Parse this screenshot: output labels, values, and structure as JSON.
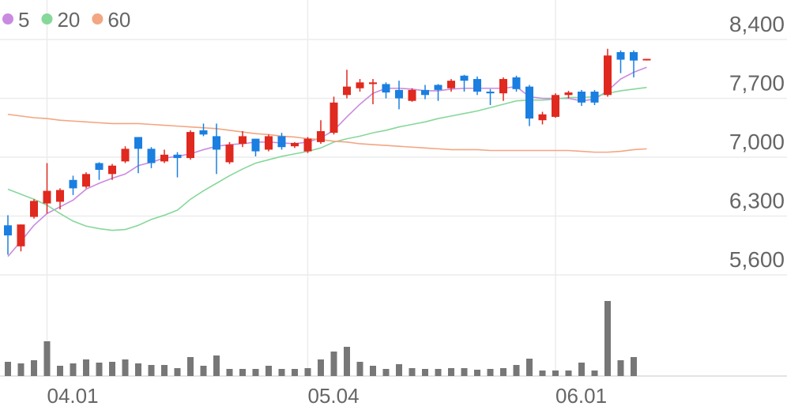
{
  "chart_data": {
    "type": "candlestick",
    "categories": [
      null,
      null,
      null,
      "04.01",
      null,
      null,
      null,
      null,
      null,
      null,
      null,
      null,
      null,
      null,
      null,
      null,
      null,
      null,
      null,
      null,
      null,
      null,
      null,
      "05.04",
      null,
      null,
      null,
      null,
      null,
      null,
      null,
      null,
      null,
      null,
      null,
      null,
      null,
      null,
      null,
      null,
      null,
      null,
      "06.01",
      null,
      null,
      null,
      null,
      null,
      null,
      null
    ],
    "open": [
      6190,
      5940,
      6290,
      6450,
      6470,
      6730,
      6650,
      6930,
      6800,
      6950,
      7240,
      7100,
      6950,
      7030,
      6990,
      7320,
      7250,
      6940,
      7160,
      7220,
      7090,
      7250,
      7130,
      7070,
      7180,
      7290,
      7740,
      7820,
      7870,
      7870,
      7800,
      7670,
      7800,
      7860,
      7820,
      7970,
      7930,
      7780,
      7760,
      7950,
      7840,
      7440,
      7480,
      7740,
      7780,
      7780,
      7740,
      8250,
      8250,
      8160
    ],
    "high": [
      6310,
      6200,
      6500,
      6930,
      6630,
      6780,
      6820,
      6940,
      6920,
      7130,
      7240,
      7120,
      7090,
      7060,
      7320,
      7400,
      7400,
      7180,
      7310,
      7220,
      7270,
      7290,
      7180,
      7240,
      7440,
      7720,
      8040,
      7930,
      7930,
      7890,
      7910,
      7820,
      7860,
      7870,
      7930,
      7980,
      7960,
      7810,
      7950,
      7970,
      7860,
      7540,
      7760,
      7790,
      7800,
      7800,
      8290,
      8270,
      8270,
      8170
    ],
    "low": [
      5840,
      5880,
      6270,
      6330,
      6380,
      6550,
      6630,
      6730,
      6730,
      6930,
      6810,
      6870,
      6930,
      6760,
      6970,
      7250,
      6800,
      6920,
      7120,
      7010,
      7070,
      7090,
      7110,
      7050,
      7160,
      7270,
      7700,
      7780,
      7630,
      7700,
      7570,
      7660,
      7690,
      7670,
      7780,
      7780,
      7740,
      7620,
      7670,
      7780,
      7370,
      7390,
      7470,
      7700,
      7610,
      7620,
      7720,
      8000,
      7950,
      8150
    ],
    "close": [
      6070,
      6200,
      6480,
      6600,
      6610,
      6630,
      6800,
      6850,
      6900,
      7100,
      7100,
      6930,
      7030,
      6990,
      7300,
      7270,
      7090,
      7150,
      7250,
      7070,
      7250,
      7120,
      7170,
      7220,
      7310,
      7650,
      7840,
      7890,
      7890,
      7770,
      7700,
      7800,
      7740,
      7800,
      7910,
      7910,
      7780,
      7760,
      7930,
      7810,
      7460,
      7510,
      7740,
      7770,
      7650,
      7650,
      8210,
      8160,
      8150,
      8170
    ],
    "up_color": "#e0291f",
    "down_color": "#1a7fe0",
    "ylim": [
      5600,
      8870
    ],
    "yticks": [
      {
        "value": 5600,
        "label": "5,600"
      },
      {
        "value": 6300,
        "label": "6,300"
      },
      {
        "value": 7000,
        "label": "7,000"
      },
      {
        "value": 7700,
        "label": "7,700"
      },
      {
        "value": 8400,
        "label": "8,400"
      }
    ],
    "grid": true,
    "series": [
      {
        "name": "5",
        "color": "#c98be0",
        "values": [
          5820,
          6000,
          6190,
          6330,
          6410,
          6490,
          6620,
          6690,
          6750,
          6800,
          6900,
          6940,
          6990,
          7010,
          7040,
          7090,
          7130,
          7150,
          7160,
          7180,
          7180,
          7170,
          7160,
          7180,
          7230,
          7320,
          7480,
          7630,
          7760,
          7820,
          7820,
          7810,
          7790,
          7790,
          7810,
          7820,
          7820,
          7820,
          7820,
          7840,
          7720,
          7700,
          7700,
          7700,
          7670,
          7690,
          7790,
          7930,
          8010,
          8070
        ]
      },
      {
        "name": "20",
        "color": "#86d89a",
        "values": [
          6620,
          6560,
          6500,
          6430,
          6330,
          6240,
          6180,
          6150,
          6130,
          6140,
          6190,
          6260,
          6310,
          6370,
          6500,
          6600,
          6690,
          6780,
          6860,
          6930,
          6970,
          7010,
          7040,
          7070,
          7110,
          7180,
          7220,
          7250,
          7290,
          7320,
          7360,
          7390,
          7420,
          7460,
          7490,
          7520,
          7550,
          7590,
          7630,
          7670,
          7680,
          7680,
          7690,
          7710,
          7710,
          7720,
          7760,
          7790,
          7810,
          7830
        ]
      },
      {
        "name": "60",
        "color": "#f2a682",
        "values": [
          7510,
          7490,
          7470,
          7460,
          7440,
          7430,
          7420,
          7410,
          7400,
          7400,
          7400,
          7390,
          7380,
          7370,
          7360,
          7350,
          7340,
          7320,
          7300,
          7280,
          7270,
          7250,
          7240,
          7220,
          7210,
          7190,
          7180,
          7160,
          7150,
          7140,
          7130,
          7120,
          7110,
          7100,
          7090,
          7090,
          7090,
          7080,
          7080,
          7080,
          7080,
          7080,
          7080,
          7080,
          7070,
          7060,
          7060,
          7070,
          7090,
          7100
        ]
      }
    ],
    "volume": {
      "color": "#777777",
      "ylim": [
        0,
        100
      ],
      "values": [
        18,
        16,
        20,
        44,
        13,
        16,
        21,
        17,
        18,
        21,
        16,
        14,
        14,
        10,
        24,
        13,
        26,
        9,
        9,
        9,
        13,
        9,
        9,
        10,
        21,
        31,
        37,
        18,
        13,
        9,
        15,
        10,
        9,
        9,
        10,
        10,
        8,
        9,
        10,
        14,
        22,
        7,
        7,
        7,
        17,
        7,
        95,
        20,
        24,
        null
      ]
    }
  }
}
